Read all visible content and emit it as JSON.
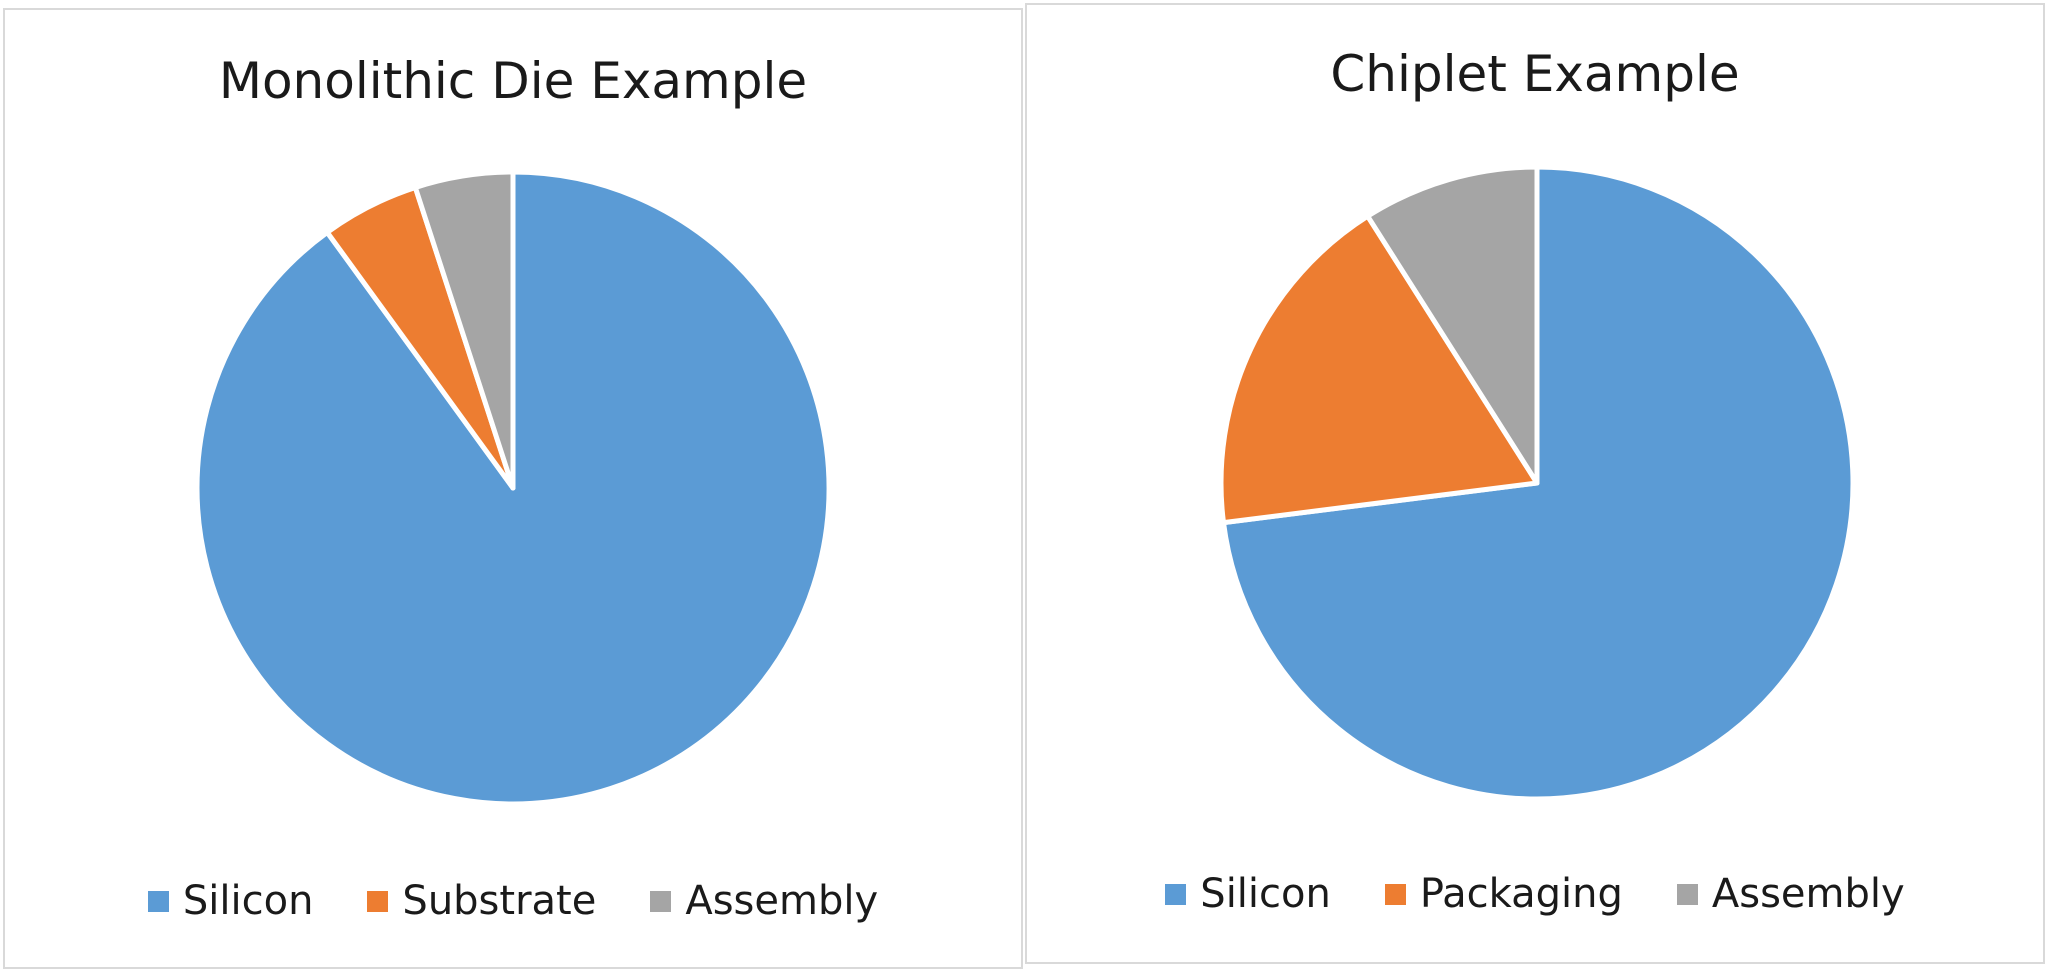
{
  "chart_data": [
    {
      "type": "pie",
      "title": "Monolithic Die Example",
      "legend_position": "bottom",
      "start_angle": "12 o'clock",
      "direction": "clockwise",
      "slices": [
        {
          "label": "Silicon",
          "value": 90,
          "color": "#5b9bd5"
        },
        {
          "label": "Substrate",
          "value": 5,
          "color": "#ed7d31"
        },
        {
          "label": "Assembly",
          "value": 5,
          "color": "#a5a5a5"
        }
      ]
    },
    {
      "type": "pie",
      "title": "Chiplet Example",
      "legend_position": "bottom",
      "start_angle": "12 o'clock",
      "direction": "clockwise",
      "slices": [
        {
          "label": "Silicon",
          "value": 73,
          "color": "#5b9bd5"
        },
        {
          "label": "Packaging",
          "value": 18,
          "color": "#ed7d31"
        },
        {
          "label": "Assembly",
          "value": 9,
          "color": "#a5a5a5"
        }
      ]
    }
  ]
}
